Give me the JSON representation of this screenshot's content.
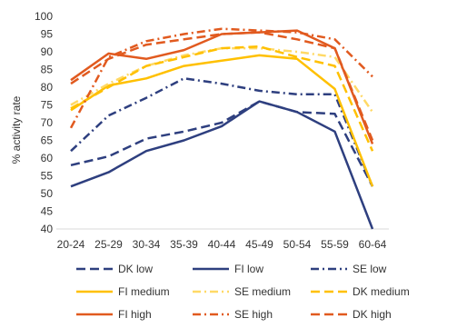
{
  "chart_data": {
    "type": "line",
    "title": "",
    "xlabel": "",
    "ylabel": "% activity rate",
    "ylim": [
      40,
      100
    ],
    "yticks": [
      40,
      45,
      50,
      55,
      60,
      65,
      70,
      75,
      80,
      85,
      90,
      95,
      100
    ],
    "grid": false,
    "legend_position": "bottom",
    "categories": [
      "20-24",
      "25-29",
      "30-34",
      "35-39",
      "40-44",
      "45-49",
      "50-54",
      "55-59",
      "60-64"
    ],
    "series": [
      {
        "name": "DK low",
        "color": "#2E3F7F",
        "dash": "long-dash",
        "values": [
          58,
          60.5,
          65.5,
          67.5,
          70,
          76,
          73,
          72.5,
          52
        ]
      },
      {
        "name": "FI low",
        "color": "#2E3F7F",
        "dash": "solid",
        "values": [
          52,
          56,
          62,
          65,
          69,
          76,
          73,
          67.5,
          40
        ]
      },
      {
        "name": "SE low",
        "color": "#2E3F7F",
        "dash": "dash-dot",
        "values": [
          62,
          72,
          77,
          82.5,
          81,
          79,
          78,
          78,
          52
        ]
      },
      {
        "name": "FI medium",
        "color": "#FFC000",
        "dash": "solid",
        "values": [
          73.5,
          80.5,
          82.5,
          86,
          87.5,
          89,
          88,
          79.5,
          52
        ]
      },
      {
        "name": "SE medium",
        "color": "#FFD966",
        "dash": "dash-dot",
        "values": [
          75,
          81,
          86,
          89,
          91,
          91,
          90,
          88.5,
          73
        ]
      },
      {
        "name": "DK medium",
        "color": "#FFC000",
        "dash": "long-dash",
        "values": [
          74,
          80,
          86,
          88.5,
          91,
          91.5,
          88.5,
          86,
          62
        ]
      },
      {
        "name": "FI high",
        "color": "#E15A1F",
        "dash": "solid",
        "values": [
          82,
          89.5,
          88,
          90.5,
          95,
          95.5,
          96,
          91,
          64
        ]
      },
      {
        "name": "SE high",
        "color": "#E15A1F",
        "dash": "dash-dot",
        "values": [
          68.5,
          88.5,
          93,
          95,
          96.5,
          96,
          95.5,
          93.5,
          83
        ]
      },
      {
        "name": "DK high",
        "color": "#E15A1F",
        "dash": "long-dash",
        "values": [
          81,
          88,
          92,
          93.5,
          95,
          95.5,
          93.5,
          91,
          65
        ]
      }
    ]
  }
}
